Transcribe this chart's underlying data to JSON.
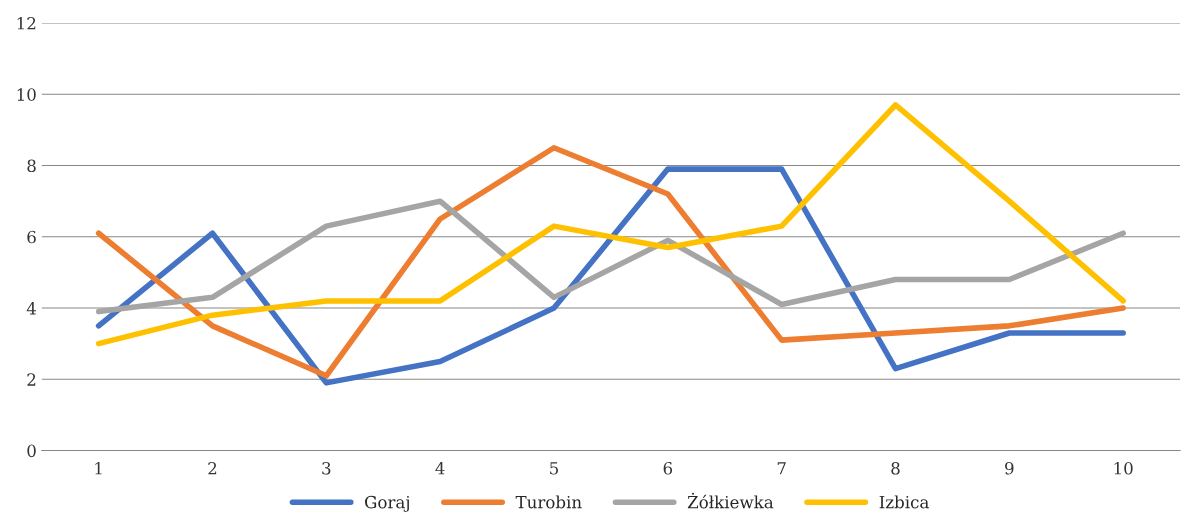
{
  "chart_data": {
    "type": "line",
    "categories": [
      "1",
      "2",
      "3",
      "4",
      "5",
      "6",
      "7",
      "8",
      "9",
      "10"
    ],
    "series": [
      {
        "name": "Goraj",
        "color": "#4472c4",
        "values": [
          3.5,
          6.1,
          1.9,
          2.5,
          4.0,
          7.9,
          7.9,
          2.3,
          3.3,
          3.3
        ]
      },
      {
        "name": "Turobin",
        "color": "#ed7d31",
        "values": [
          6.1,
          3.5,
          2.1,
          6.5,
          8.5,
          7.2,
          3.1,
          3.3,
          3.5,
          4.0
        ]
      },
      {
        "name": "Żółkiewka",
        "color": "#a5a5a5",
        "values": [
          3.9,
          4.3,
          6.3,
          7.0,
          4.3,
          5.9,
          4.1,
          4.8,
          4.8,
          6.1
        ]
      },
      {
        "name": "Izbica",
        "color": "#ffc000",
        "values": [
          3.0,
          3.8,
          4.2,
          4.2,
          6.3,
          5.7,
          6.3,
          9.7,
          7.0,
          4.2
        ]
      }
    ],
    "ylim": [
      0,
      12
    ],
    "yticks": [
      0,
      2,
      4,
      6,
      8,
      10,
      12
    ],
    "grid": "y",
    "legend": "bottom",
    "marker": "none",
    "line_style": "solid"
  }
}
